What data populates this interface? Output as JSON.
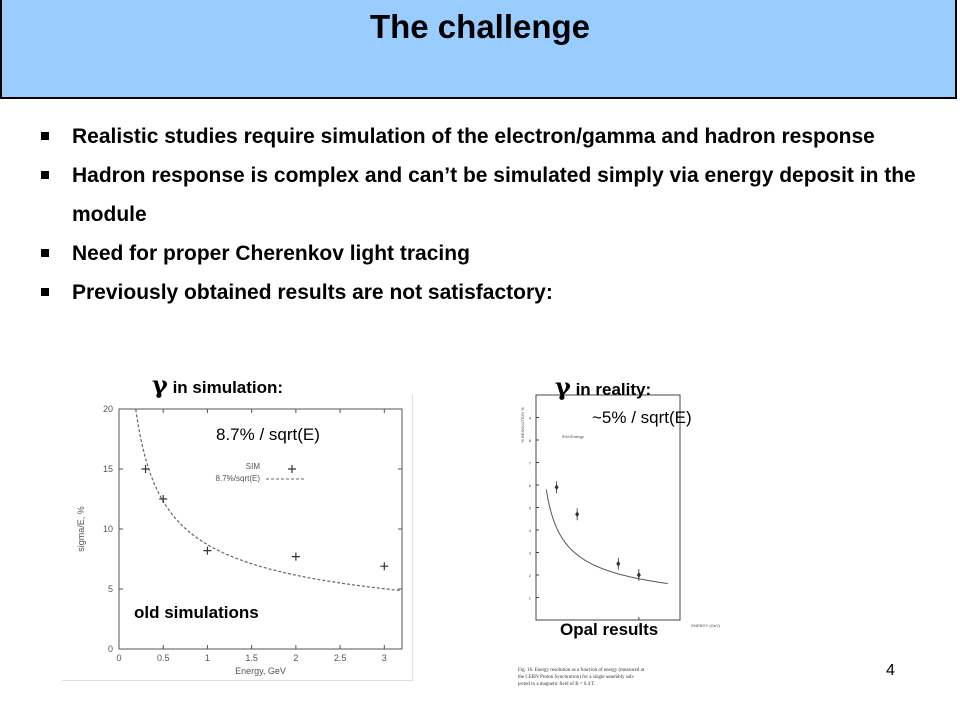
{
  "slide": {
    "title": "The challenge",
    "bullets": [
      "Realistic studies require simulation of the electron/gamma and hadron response",
      "Hadron response is complex and can’t be simulated simply via energy deposit in the module",
      "Need for proper Cherenkov light tracing",
      "Previously obtained results are not satisfactory:"
    ],
    "page_number": "4"
  },
  "panels": {
    "simulation": {
      "gamma_symbol": "γ",
      "heading": "in simulation:",
      "annotation": "8.7% / sqrt(E)",
      "caption": "old simulations"
    },
    "reality": {
      "gamma_symbol": "γ",
      "heading": "in reality:",
      "annotation": "~5% / sqrt(E)",
      "caption": "Opal results",
      "figure_caption_lines": [
        "Fig. 16. Energy resolution as a function of energy (measured at",
        "the CERN Proton Synchrotron) for a single assembly sub-",
        "jected to a magnetic field of B = 0.4 T."
      ]
    }
  },
  "chart_data": [
    {
      "type": "scatter",
      "xlabel": "Energy, GeV",
      "ylabel": "sigma/E, %",
      "xlim": [
        0,
        3.2
      ],
      "ylim": [
        0,
        20
      ],
      "xticks": [
        "0",
        "0.5",
        "1",
        "1.5",
        "2",
        "2.5",
        "3"
      ],
      "yticks": [
        "0",
        "5",
        "10",
        "15",
        "20"
      ],
      "grid": false,
      "legend_position": "top-right",
      "series": [
        {
          "name": "SIM",
          "style": "plus-markers",
          "x": [
            0.3,
            0.5,
            1.0,
            2.0,
            3.0
          ],
          "y": [
            15.0,
            12.5,
            8.2,
            7.7,
            6.9
          ]
        },
        {
          "name": "8.7%/sqrt(E)",
          "style": "dashed-curve",
          "formula": "8.7/sqrt(E)"
        }
      ]
    },
    {
      "type": "scatter",
      "xlabel": "ENERGY (GeV)",
      "ylabel": "% RESOLUTION %",
      "xlim": [
        0,
        14
      ],
      "ylim": [
        0,
        10
      ],
      "xticks": [
        "10"
      ],
      "grid": false,
      "legend_position": "top-left",
      "series": [
        {
          "name": "data",
          "style": "diamond-markers-with-error-bars",
          "x": [
            2,
            4,
            8,
            10
          ],
          "y": [
            5.9,
            4.7,
            2.5,
            2.0
          ]
        },
        {
          "name": "5%/√Energy",
          "style": "solid-curve",
          "formula": "5/sqrt(E)"
        }
      ]
    }
  ]
}
